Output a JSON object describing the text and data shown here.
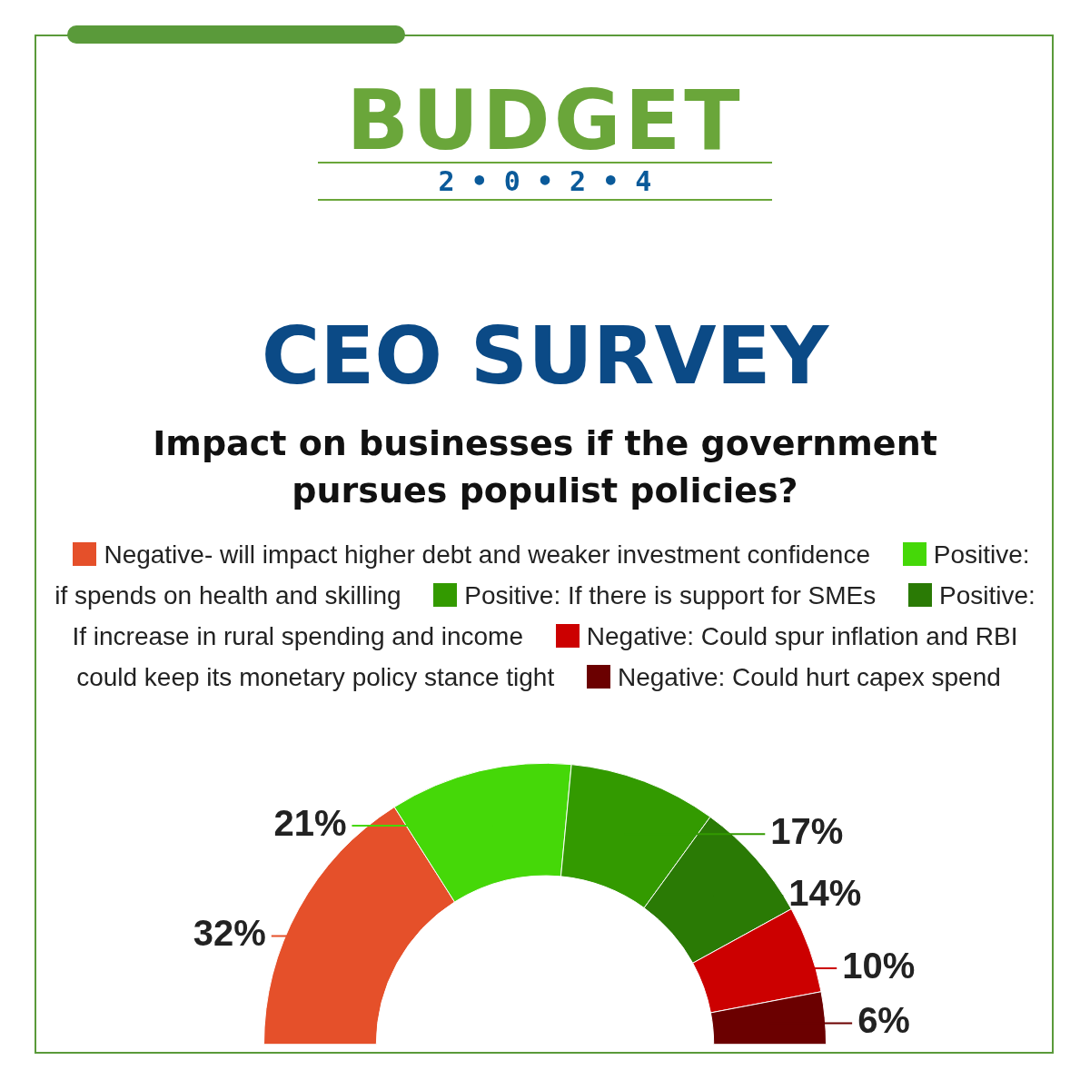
{
  "chart_data": {
    "type": "donut",
    "title": "CEO SURVEY",
    "subtitle": "Impact on businesses if the government pursues populist policies?",
    "annotations": [
      "BUDGET",
      "2 • 0 • 2 • 4"
    ],
    "categories": [
      "Negative- will impact higher debt and weaker investment confidence",
      "Positive: if spends on health and skilling",
      "Positive: If there is support for SMEs",
      "Positive: If increase in rural spending and income",
      "Negative: Could spur inflation and RBI could keep its monetary policy stance tight",
      "Negative: Could hurt capex spend"
    ],
    "values": [
      32,
      21,
      17,
      14,
      10,
      6
    ],
    "value_labels": [
      "32%",
      "21%",
      "17%",
      "14%",
      "10%",
      "6%"
    ],
    "colors": [
      "#e5502a",
      "#45d808",
      "#339a00",
      "#2a7a05",
      "#cc0000",
      "#6b0000"
    ],
    "legend": "top"
  }
}
